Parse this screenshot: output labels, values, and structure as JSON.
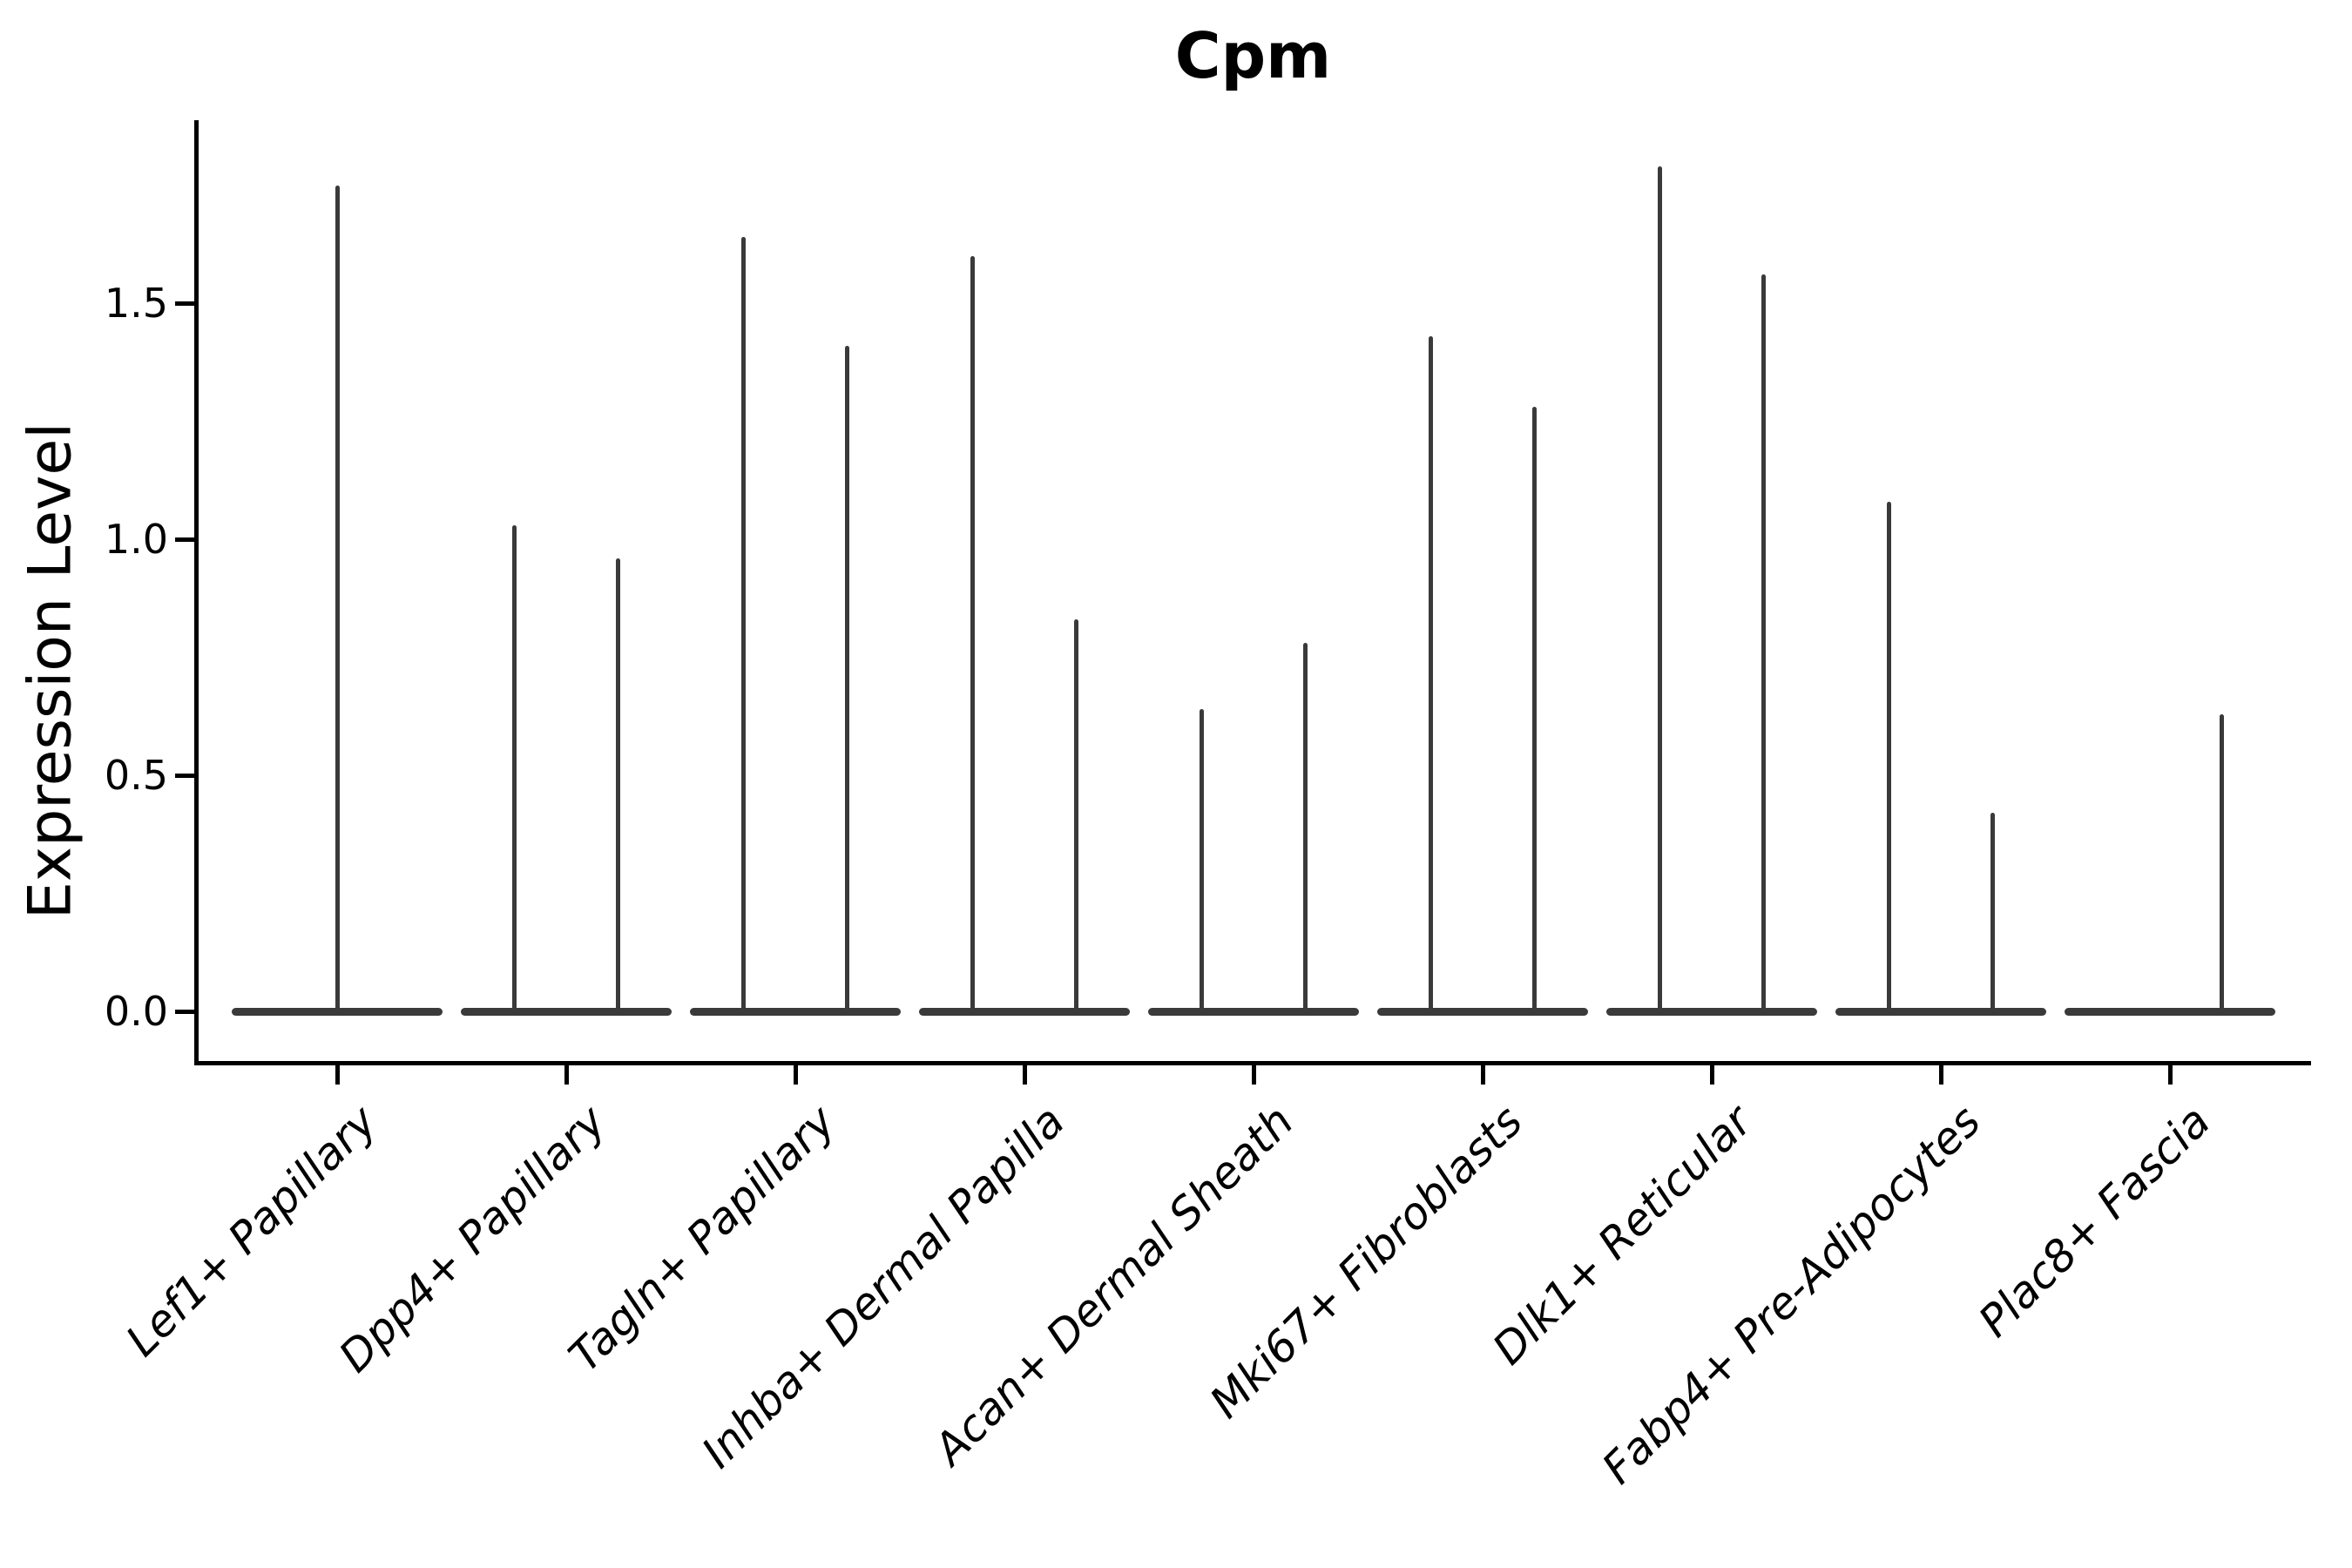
{
  "title": "Cpm",
  "axes": {
    "ylabel": "Expression Level",
    "ytick_labels": [
      "0.0",
      "0.5",
      "1.0",
      "1.5"
    ]
  },
  "chart_data": {
    "type": "violin",
    "title": "Cpm",
    "xlabel": "",
    "ylabel": "Expression Level",
    "ylim": [
      -0.11,
      1.88
    ],
    "yticks": [
      0.0,
      0.5,
      1.0,
      1.5
    ],
    "grid": false,
    "legend": "none",
    "line_color": "#3a3a3a",
    "background_color": "#ffffff",
    "description": "Violin plot of Cpm expression per fibroblast cluster; each violin is almost entirely flat at 0 with a thin spike reaching the listed maximum expression value. Most categories contain a pair of violins (left/right); Lef1+ Papillary has a single centered violin and Plac8+ Fascia shows only its right violin above zero.",
    "categories": [
      "Lef1+ Papillary",
      "Dpp4+ Papillary",
      "Tagln+ Papillary",
      "Inhba+ Dermal Papilla",
      "Acan+ Dermal Sheath",
      "Mki67+ Fibroblasts",
      "Dlk1+ Reticular",
      "Fabp4+ Pre-Adipocytes",
      "Plac8+ Fascia"
    ],
    "groups": [
      {
        "category": "Lef1+ Papillary",
        "violins": [
          {
            "side": "center",
            "max": 1.75
          }
        ]
      },
      {
        "category": "Dpp4+ Papillary",
        "violins": [
          {
            "side": "left",
            "max": 1.03
          },
          {
            "side": "right",
            "max": 0.96
          }
        ]
      },
      {
        "category": "Tagln+ Papillary",
        "violins": [
          {
            "side": "left",
            "max": 1.64
          },
          {
            "side": "right",
            "max": 1.41
          }
        ]
      },
      {
        "category": "Inhba+ Dermal Papilla",
        "violins": [
          {
            "side": "left",
            "max": 1.6
          },
          {
            "side": "right",
            "max": 0.83
          }
        ]
      },
      {
        "category": "Acan+ Dermal Sheath",
        "violins": [
          {
            "side": "left",
            "max": 0.64
          },
          {
            "side": "right",
            "max": 0.78
          }
        ]
      },
      {
        "category": "Mki67+ Fibroblasts",
        "violins": [
          {
            "side": "left",
            "max": 1.43
          },
          {
            "side": "right",
            "max": 1.28
          }
        ]
      },
      {
        "category": "Dlk1+ Reticular",
        "violins": [
          {
            "side": "left",
            "max": 1.79
          },
          {
            "side": "right",
            "max": 1.56
          }
        ]
      },
      {
        "category": "Fabp4+ Pre-Adipocytes",
        "violins": [
          {
            "side": "left",
            "max": 1.08
          },
          {
            "side": "right",
            "max": 0.42
          }
        ]
      },
      {
        "category": "Plac8+ Fascia",
        "violins": [
          {
            "side": "left",
            "max": 0.0
          },
          {
            "side": "right",
            "max": 0.63
          }
        ]
      }
    ]
  }
}
